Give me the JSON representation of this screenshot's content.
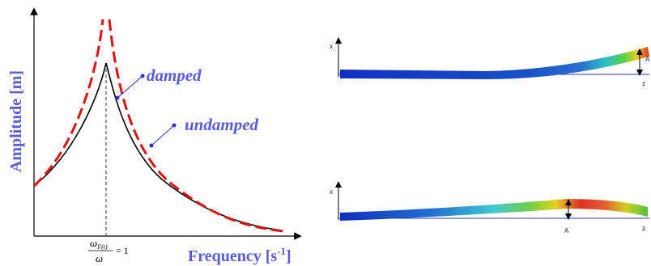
{
  "left_plot": {
    "y_label": "Amplitude [m]",
    "x_label": {
      "main": "Frequency [s",
      "sup": "-1",
      "end": "]"
    },
    "formula": {
      "numerator": "ω",
      "subscript": "F(t)",
      "denominator": "ω",
      "equals": "= 1"
    },
    "curves": {
      "damped": "damped",
      "undamped": "undamped"
    }
  },
  "beams": [
    {
      "x_label": "x",
      "z_label": "z",
      "a_label": "A"
    },
    {
      "x_label": "x",
      "z_label": "z",
      "a_label": "A"
    }
  ]
}
